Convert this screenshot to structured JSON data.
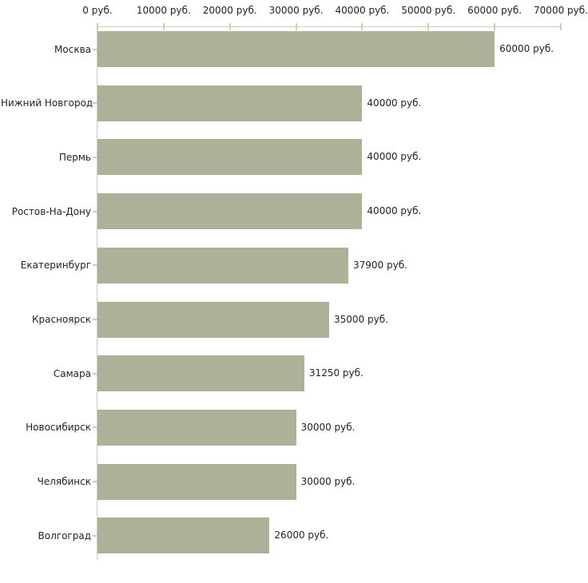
{
  "chart_data": {
    "type": "bar",
    "orientation": "horizontal",
    "categories": [
      "Москва",
      "Нижний Новгород",
      "Пермь",
      "Ростов-На-Дону",
      "Екатеринбург",
      "Красноярск",
      "Самара",
      "Новосибирск",
      "Челябинск",
      "Волгоград"
    ],
    "values": [
      60000,
      40000,
      40000,
      40000,
      37900,
      35000,
      31250,
      30000,
      30000,
      26000
    ],
    "value_labels": [
      "60000 руб.",
      "40000 руб.",
      "40000 руб.",
      "40000 руб.",
      "37900 руб.",
      "35000 руб.",
      "31250 руб.",
      "30000 руб.",
      "30000 руб.",
      "26000 руб."
    ],
    "x_axis": {
      "position": "top",
      "max": 70000,
      "ticks": [
        0,
        10000,
        20000,
        30000,
        40000,
        50000,
        60000,
        70000
      ],
      "tick_labels": [
        "0 руб.",
        "10000 руб.",
        "20000 руб.",
        "30000 руб.",
        "40000 руб.",
        "50000 руб.",
        "60000 руб.",
        "70000 руб."
      ]
    },
    "grid": false,
    "legend": false,
    "colors": {
      "bar": "#acb198",
      "axis_line": "#c9c9c9",
      "tick": "#cfcdaa",
      "text": "#222222",
      "background": "#ffffff"
    }
  }
}
